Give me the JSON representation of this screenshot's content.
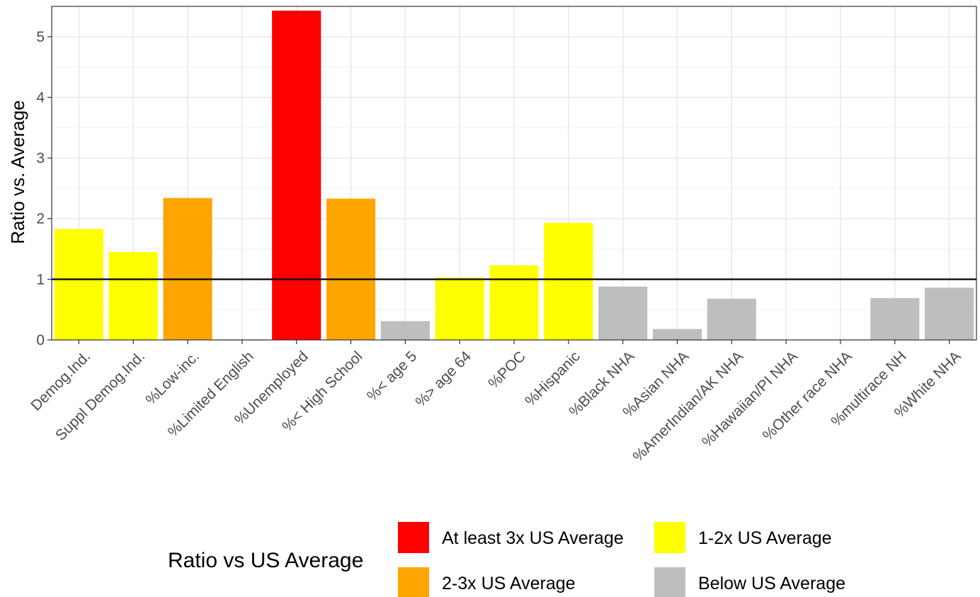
{
  "chart_data": {
    "type": "bar",
    "title": "",
    "xlabel": "",
    "ylabel": "Ratio vs. Average",
    "ylim": [
      0,
      5.5
    ],
    "yticks": [
      0,
      1,
      2,
      3,
      4,
      5
    ],
    "grid": true,
    "reference_line": 1,
    "categories": [
      "Demog.Ind.",
      "Suppl Demog.Ind.",
      "%Low-inc.",
      "%Limited English",
      "%Unemployed",
      "%< High School",
      "%< age 5",
      "%> age 64",
      "%POC",
      "%Hispanic",
      "%Black NHA",
      "%Asian NHA",
      "%AmerIndian/AK NHA",
      "%Hawaiian/PI NHA",
      "%Other race NHA",
      "%multirace NH",
      "%White NHA"
    ],
    "values": [
      1.83,
      1.45,
      2.34,
      0.01,
      5.43,
      2.33,
      0.31,
      1.03,
      1.23,
      1.93,
      0.88,
      0.18,
      0.68,
      0,
      0,
      0.69,
      0.86
    ],
    "groups": [
      "1-2x US Average",
      "1-2x US Average",
      "2-3x US Average",
      "Below US Average",
      "At least 3x US Average",
      "2-3x US Average",
      "Below US Average",
      "1-2x US Average",
      "1-2x US Average",
      "1-2x US Average",
      "Below US Average",
      "Below US Average",
      "Below US Average",
      "Below US Average",
      "Below US Average",
      "Below US Average",
      "Below US Average"
    ],
    "legend": {
      "title": "Ratio vs US Average",
      "position": "bottom",
      "items": [
        {
          "label": "At least 3x US Average",
          "color": "#ff0000"
        },
        {
          "label": "1-2x US Average",
          "color": "#ffff00"
        },
        {
          "label": "2-3x US Average",
          "color": "#ffa500"
        },
        {
          "label": "Below US Average",
          "color": "#bebebe"
        }
      ]
    }
  }
}
